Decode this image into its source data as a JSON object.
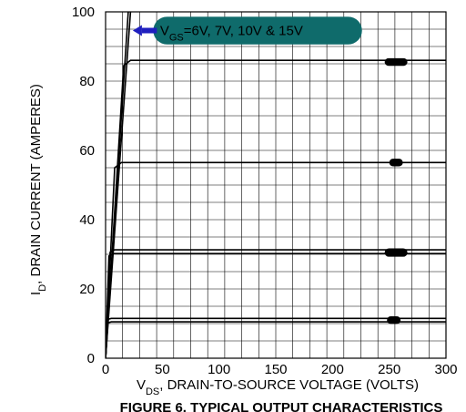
{
  "chart_data": {
    "type": "line",
    "title": "",
    "caption": "FIGURE 6. TYPICAL OUTPUT CHARACTERISTICS",
    "xlabel": {
      "prefix": "V",
      "sub": "DS",
      "suffix": ", DRAIN-TO-SOURCE VOLTAGE (VOLTS)"
    },
    "ylabel": {
      "prefix": "I",
      "sub": "D",
      "suffix": ", DRAIN CURRENT (AMPERES)"
    },
    "xlim": [
      0,
      300
    ],
    "ylim": [
      0,
      100
    ],
    "xticks": [
      0,
      50,
      100,
      150,
      200,
      250,
      300
    ],
    "yticks": [
      0,
      20,
      40,
      60,
      80,
      100
    ],
    "grid": true,
    "annotation": {
      "prefix": "V",
      "sub": "GS",
      "suffix": "=6V, 7V, 10V & 15V",
      "color": "#0f6b6b"
    },
    "arrow_color": "#1f1fbf",
    "series": [
      {
        "values": [
          [
            0,
            0
          ],
          [
            2,
            10.2
          ],
          [
            5,
            10.5
          ],
          [
            300,
            10.5
          ]
        ]
      },
      {
        "values": [
          [
            0,
            0
          ],
          [
            2,
            11.2
          ],
          [
            5,
            11.5
          ],
          [
            300,
            11.5
          ]
        ]
      },
      {
        "values": [
          [
            0,
            0
          ],
          [
            3,
            29.5
          ],
          [
            7,
            30.2
          ],
          [
            300,
            30.2
          ]
        ]
      },
      {
        "values": [
          [
            0,
            0
          ],
          [
            4,
            30.6
          ],
          [
            8,
            31.3
          ],
          [
            300,
            31.3
          ]
        ]
      },
      {
        "values": [
          [
            0,
            0
          ],
          [
            8,
            55.0
          ],
          [
            14,
            56.5
          ],
          [
            300,
            56.5
          ]
        ]
      },
      {
        "values": [
          [
            0,
            0
          ],
          [
            16,
            84.5
          ],
          [
            22,
            86.0
          ],
          [
            300,
            86.0
          ]
        ]
      },
      {
        "values": [
          [
            0,
            0
          ],
          [
            20,
            100
          ]
        ]
      },
      {
        "values": [
          [
            0,
            0
          ],
          [
            22,
            100
          ]
        ]
      }
    ],
    "blobs": [
      {
        "x": 256,
        "y": 85.5,
        "w": 20,
        "h": 2.2
      },
      {
        "x": 256,
        "y": 56.5,
        "w": 12,
        "h": 2.2
      },
      {
        "x": 256,
        "y": 30.5,
        "w": 20,
        "h": 2.4
      },
      {
        "x": 254,
        "y": 11,
        "w": 12,
        "h": 2.2
      }
    ]
  }
}
